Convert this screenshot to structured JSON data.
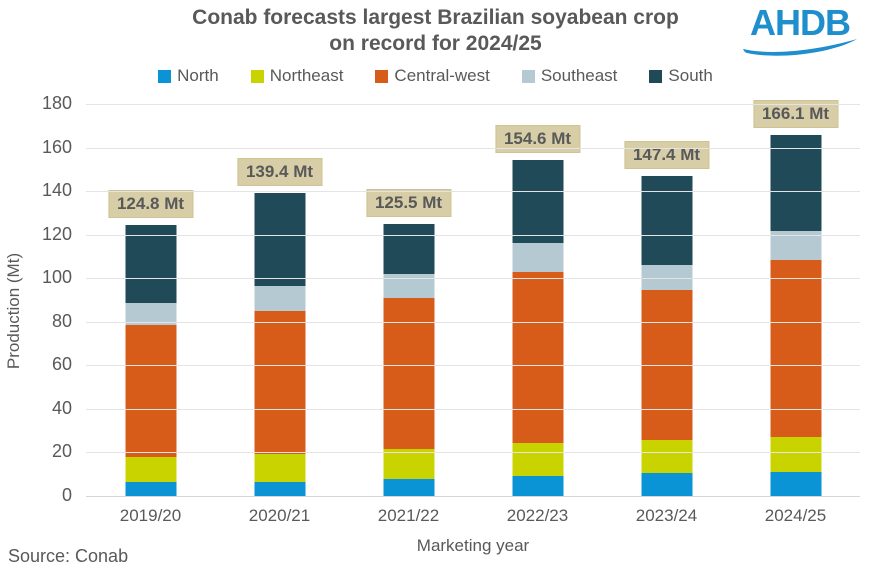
{
  "title": {
    "line1": "Conab forecasts largest Brazilian soyabean crop",
    "line2": "on record for 2024/25"
  },
  "logo": {
    "text": "AHDB",
    "color": "#1e8ecd"
  },
  "source": "Source: Conab",
  "colors": {
    "text_gray": "#595959",
    "grid": "#e4e4e4",
    "label_box_bg": "#d7cda7",
    "label_box_border": "#cec391"
  },
  "chart_data": {
    "type": "bar",
    "stacked": true,
    "title": "Conab forecasts largest Brazilian soyabean crop on record for 2024/25",
    "categories": [
      "2019/20",
      "2020/21",
      "2021/22",
      "2022/23",
      "2023/24",
      "2024/25"
    ],
    "series": [
      {
        "name": "North",
        "color": "#0a93d5",
        "values": [
          6.7,
          6.9,
          8.1,
          9.6,
          11.2,
          11.6
        ]
      },
      {
        "name": "Northeast",
        "color": "#c8d300",
        "values": [
          11.9,
          12.8,
          13.8,
          15.1,
          15.0,
          16.1
        ]
      },
      {
        "name": "Central-west",
        "color": "#d85c19",
        "values": [
          60.6,
          65.7,
          69.6,
          78.8,
          68.8,
          81.1
        ]
      },
      {
        "name": "Southeast",
        "color": "#b5c9d3",
        "values": [
          10.0,
          11.5,
          10.7,
          13.0,
          11.5,
          13.3
        ]
      },
      {
        "name": "South",
        "color": "#204a57",
        "values": [
          35.6,
          42.5,
          23.3,
          38.1,
          40.9,
          44.0
        ]
      }
    ],
    "totals": [
      124.8,
      139.4,
      125.5,
      154.6,
      147.4,
      166.1
    ],
    "total_labels": [
      "124.8 Mt",
      "139.4 Mt",
      "125.5 Mt",
      "154.6 Mt",
      "147.4 Mt",
      "166.1 Mt"
    ],
    "xlabel": "Marketing year",
    "ylabel": "Production (Mt)",
    "ylim": [
      0,
      180
    ],
    "ytick_step": 20,
    "grid": true,
    "legend_position": "top"
  }
}
